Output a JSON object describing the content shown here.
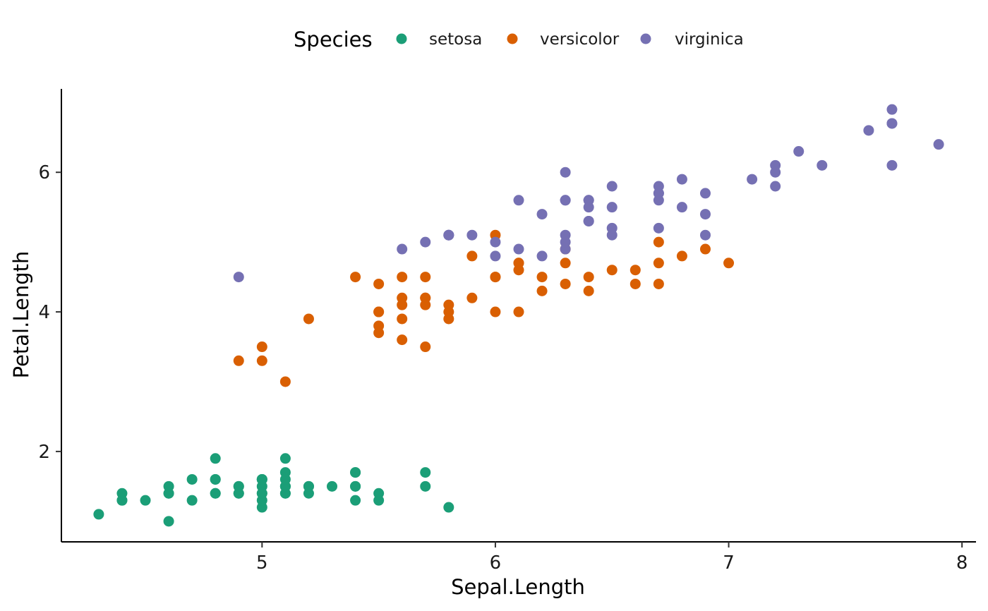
{
  "chart_data": {
    "type": "scatter",
    "xlabel": "Sepal.Length",
    "ylabel": "Petal.Length",
    "xlim": [
      4.14,
      8.06
    ],
    "ylim": [
      0.705,
      7.195
    ],
    "x_ticks": [
      5,
      6,
      7,
      8
    ],
    "y_ticks": [
      2,
      4,
      6
    ],
    "grid": false,
    "legend": {
      "title": "Species",
      "position": "top"
    },
    "series": [
      {
        "name": "setosa",
        "color": "#1b9e77",
        "points": [
          [
            5.1,
            1.4
          ],
          [
            4.9,
            1.4
          ],
          [
            4.7,
            1.3
          ],
          [
            4.6,
            1.5
          ],
          [
            5.0,
            1.4
          ],
          [
            5.4,
            1.7
          ],
          [
            4.6,
            1.4
          ],
          [
            5.0,
            1.5
          ],
          [
            4.4,
            1.4
          ],
          [
            4.9,
            1.5
          ],
          [
            5.4,
            1.5
          ],
          [
            4.8,
            1.6
          ],
          [
            4.8,
            1.4
          ],
          [
            4.3,
            1.1
          ],
          [
            5.8,
            1.2
          ],
          [
            5.7,
            1.5
          ],
          [
            5.4,
            1.3
          ],
          [
            5.1,
            1.4
          ],
          [
            5.7,
            1.7
          ],
          [
            5.1,
            1.5
          ],
          [
            5.4,
            1.7
          ],
          [
            5.1,
            1.5
          ],
          [
            4.6,
            1.0
          ],
          [
            5.1,
            1.7
          ],
          [
            4.8,
            1.9
          ],
          [
            5.0,
            1.6
          ],
          [
            5.0,
            1.6
          ],
          [
            5.2,
            1.5
          ],
          [
            5.2,
            1.4
          ],
          [
            4.7,
            1.6
          ],
          [
            4.8,
            1.6
          ],
          [
            5.4,
            1.5
          ],
          [
            5.2,
            1.5
          ],
          [
            5.5,
            1.4
          ],
          [
            4.9,
            1.5
          ],
          [
            5.0,
            1.2
          ],
          [
            5.5,
            1.3
          ],
          [
            4.9,
            1.4
          ],
          [
            4.4,
            1.3
          ],
          [
            5.1,
            1.5
          ],
          [
            5.0,
            1.3
          ],
          [
            4.5,
            1.3
          ],
          [
            4.4,
            1.3
          ],
          [
            5.0,
            1.6
          ],
          [
            5.1,
            1.9
          ],
          [
            4.8,
            1.4
          ],
          [
            5.1,
            1.6
          ],
          [
            4.6,
            1.4
          ],
          [
            5.3,
            1.5
          ],
          [
            5.0,
            1.4
          ]
        ]
      },
      {
        "name": "versicolor",
        "color": "#d95f02",
        "points": [
          [
            7.0,
            4.7
          ],
          [
            6.4,
            4.5
          ],
          [
            6.9,
            4.9
          ],
          [
            5.5,
            4.0
          ],
          [
            6.5,
            4.6
          ],
          [
            5.7,
            4.5
          ],
          [
            6.3,
            4.7
          ],
          [
            4.9,
            3.3
          ],
          [
            6.6,
            4.6
          ],
          [
            5.2,
            3.9
          ],
          [
            5.0,
            3.5
          ],
          [
            5.9,
            4.2
          ],
          [
            6.0,
            4.0
          ],
          [
            6.1,
            4.7
          ],
          [
            5.6,
            3.6
          ],
          [
            6.7,
            4.4
          ],
          [
            5.6,
            4.5
          ],
          [
            5.8,
            4.1
          ],
          [
            6.2,
            4.5
          ],
          [
            5.6,
            3.9
          ],
          [
            5.9,
            4.8
          ],
          [
            6.1,
            4.0
          ],
          [
            6.3,
            4.9
          ],
          [
            6.1,
            4.7
          ],
          [
            6.4,
            4.3
          ],
          [
            6.6,
            4.4
          ],
          [
            6.8,
            4.8
          ],
          [
            6.7,
            5.0
          ],
          [
            6.0,
            4.5
          ],
          [
            5.7,
            3.5
          ],
          [
            5.5,
            3.8
          ],
          [
            5.5,
            3.7
          ],
          [
            5.8,
            3.9
          ],
          [
            6.0,
            5.1
          ],
          [
            5.4,
            4.5
          ],
          [
            6.0,
            4.5
          ],
          [
            6.7,
            4.7
          ],
          [
            6.3,
            4.4
          ],
          [
            5.6,
            4.1
          ],
          [
            5.5,
            4.0
          ],
          [
            5.5,
            4.4
          ],
          [
            6.1,
            4.6
          ],
          [
            5.8,
            4.0
          ],
          [
            5.0,
            3.3
          ],
          [
            5.6,
            4.2
          ],
          [
            5.7,
            4.2
          ],
          [
            5.7,
            4.2
          ],
          [
            6.2,
            4.3
          ],
          [
            5.1,
            3.0
          ],
          [
            5.7,
            4.1
          ]
        ]
      },
      {
        "name": "virginica",
        "color": "#7570b3",
        "points": [
          [
            6.3,
            6.0
          ],
          [
            5.8,
            5.1
          ],
          [
            7.1,
            5.9
          ],
          [
            6.3,
            5.6
          ],
          [
            6.5,
            5.8
          ],
          [
            7.6,
            6.6
          ],
          [
            4.9,
            4.5
          ],
          [
            7.3,
            6.3
          ],
          [
            6.7,
            5.8
          ],
          [
            7.2,
            6.1
          ],
          [
            6.5,
            5.1
          ],
          [
            6.4,
            5.3
          ],
          [
            6.8,
            5.5
          ],
          [
            5.7,
            5.0
          ],
          [
            5.8,
            5.1
          ],
          [
            6.4,
            5.3
          ],
          [
            6.5,
            5.5
          ],
          [
            7.7,
            6.7
          ],
          [
            7.7,
            6.9
          ],
          [
            6.0,
            5.0
          ],
          [
            6.9,
            5.7
          ],
          [
            5.6,
            4.9
          ],
          [
            7.7,
            6.7
          ],
          [
            6.3,
            4.9
          ],
          [
            6.7,
            5.7
          ],
          [
            7.2,
            6.0
          ],
          [
            6.2,
            4.8
          ],
          [
            6.1,
            4.9
          ],
          [
            6.4,
            5.6
          ],
          [
            7.2,
            5.8
          ],
          [
            7.4,
            6.1
          ],
          [
            7.9,
            6.4
          ],
          [
            6.4,
            5.6
          ],
          [
            6.3,
            5.1
          ],
          [
            6.1,
            5.6
          ],
          [
            7.7,
            6.1
          ],
          [
            6.3,
            5.6
          ],
          [
            6.4,
            5.5
          ],
          [
            6.0,
            4.8
          ],
          [
            6.9,
            5.4
          ],
          [
            6.7,
            5.6
          ],
          [
            6.9,
            5.1
          ],
          [
            5.8,
            5.1
          ],
          [
            6.8,
            5.9
          ],
          [
            6.7,
            5.7
          ],
          [
            6.7,
            5.2
          ],
          [
            6.3,
            5.0
          ],
          [
            6.5,
            5.2
          ],
          [
            6.2,
            5.4
          ],
          [
            5.9,
            5.1
          ]
        ]
      }
    ]
  }
}
